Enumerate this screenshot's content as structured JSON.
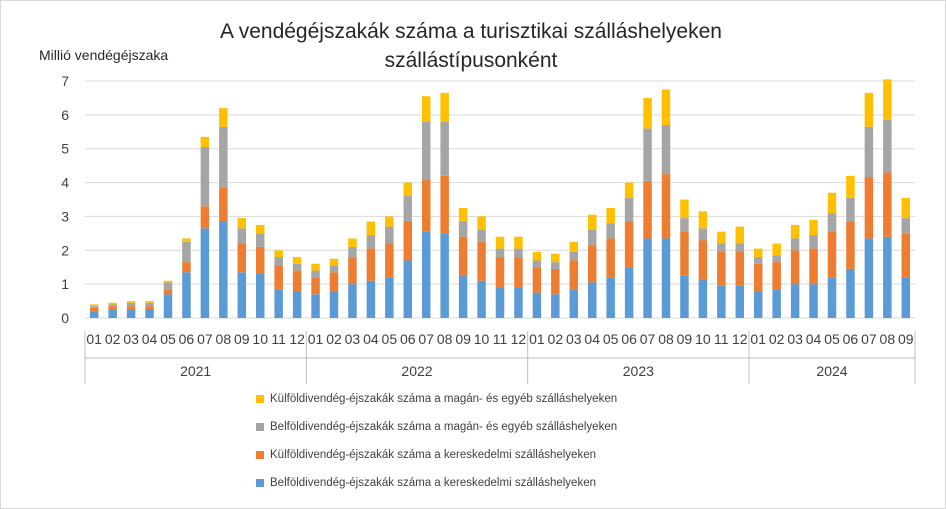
{
  "chart_data": {
    "type": "bar",
    "stacked": true,
    "title": "A vendégéjszakák száma a turisztikai szálláshelyeken szállástípusonként",
    "ylabel": "Millió vendégéjszaka",
    "ylim": [
      0,
      7
    ],
    "yticks": [
      0,
      1,
      2,
      3,
      4,
      5,
      6,
      7
    ],
    "grid": true,
    "legend_position": "bottom",
    "year_groups": [
      {
        "label": "2021",
        "count": 12
      },
      {
        "label": "2022",
        "count": 12
      },
      {
        "label": "2023",
        "count": 12
      },
      {
        "label": "2024",
        "count": 9
      }
    ],
    "categories": [
      "01",
      "02",
      "03",
      "04",
      "05",
      "06",
      "07",
      "08",
      "09",
      "10",
      "11",
      "12",
      "01",
      "02",
      "03",
      "04",
      "05",
      "06",
      "07",
      "08",
      "09",
      "10",
      "11",
      "12",
      "01",
      "02",
      "03",
      "04",
      "05",
      "06",
      "07",
      "08",
      "09",
      "10",
      "11",
      "12",
      "01",
      "02",
      "03",
      "04",
      "05",
      "06",
      "07",
      "08",
      "09"
    ],
    "series": [
      {
        "name": "Belföldivendég-éjszakák száma a kereskedelmi szálláshelyeken",
        "color": "#5b9bd5",
        "values": [
          0.2,
          0.25,
          0.25,
          0.25,
          0.7,
          1.35,
          2.65,
          2.85,
          1.35,
          1.3,
          0.85,
          0.8,
          0.7,
          0.8,
          1.0,
          1.1,
          1.2,
          1.7,
          2.55,
          2.5,
          1.25,
          1.1,
          0.9,
          0.9,
          0.75,
          0.7,
          0.85,
          1.05,
          1.2,
          1.5,
          2.35,
          2.35,
          1.25,
          1.15,
          0.95,
          0.95,
          0.8,
          0.85,
          1.0,
          1.0,
          1.2,
          1.45,
          2.35,
          2.4,
          1.2
        ]
      },
      {
        "name": "Külföldivendég-éjszakák száma a kereskedelmi szálláshelyeken",
        "color": "#ed7d31",
        "values": [
          0.1,
          0.1,
          0.1,
          0.1,
          0.15,
          0.3,
          0.65,
          1.0,
          0.85,
          0.8,
          0.7,
          0.6,
          0.5,
          0.55,
          0.8,
          0.95,
          1.0,
          1.15,
          1.55,
          1.7,
          1.15,
          1.15,
          0.9,
          0.9,
          0.75,
          0.75,
          0.85,
          1.1,
          1.15,
          1.35,
          1.7,
          1.9,
          1.3,
          1.15,
          1.0,
          1.0,
          0.8,
          0.8,
          1.0,
          1.05,
          1.35,
          1.4,
          1.8,
          1.9,
          1.3
        ]
      },
      {
        "name": "Belföldivendég-éjszakák száma a magán- és egyéb szálláshelyeken",
        "color": "#a5a5a5",
        "values": [
          0.05,
          0.05,
          0.1,
          0.1,
          0.2,
          0.6,
          1.75,
          1.8,
          0.45,
          0.4,
          0.25,
          0.2,
          0.2,
          0.2,
          0.3,
          0.4,
          0.5,
          0.75,
          1.7,
          1.6,
          0.45,
          0.35,
          0.25,
          0.25,
          0.2,
          0.2,
          0.25,
          0.45,
          0.45,
          0.7,
          1.55,
          1.45,
          0.4,
          0.35,
          0.25,
          0.25,
          0.2,
          0.2,
          0.35,
          0.4,
          0.55,
          0.7,
          1.5,
          1.55,
          0.45
        ]
      },
      {
        "name": "Külföldivendég-éjszakák száma a magán- és egyéb szálláshelyeken",
        "color": "#ffc000",
        "values": [
          0.05,
          0.05,
          0.05,
          0.05,
          0.05,
          0.1,
          0.3,
          0.55,
          0.3,
          0.25,
          0.2,
          0.2,
          0.2,
          0.2,
          0.25,
          0.4,
          0.3,
          0.4,
          0.75,
          0.85,
          0.4,
          0.4,
          0.35,
          0.35,
          0.25,
          0.25,
          0.3,
          0.45,
          0.45,
          0.45,
          0.9,
          1.05,
          0.55,
          0.5,
          0.35,
          0.5,
          0.25,
          0.35,
          0.4,
          0.45,
          0.6,
          0.65,
          1.0,
          1.2,
          0.6
        ]
      }
    ]
  }
}
